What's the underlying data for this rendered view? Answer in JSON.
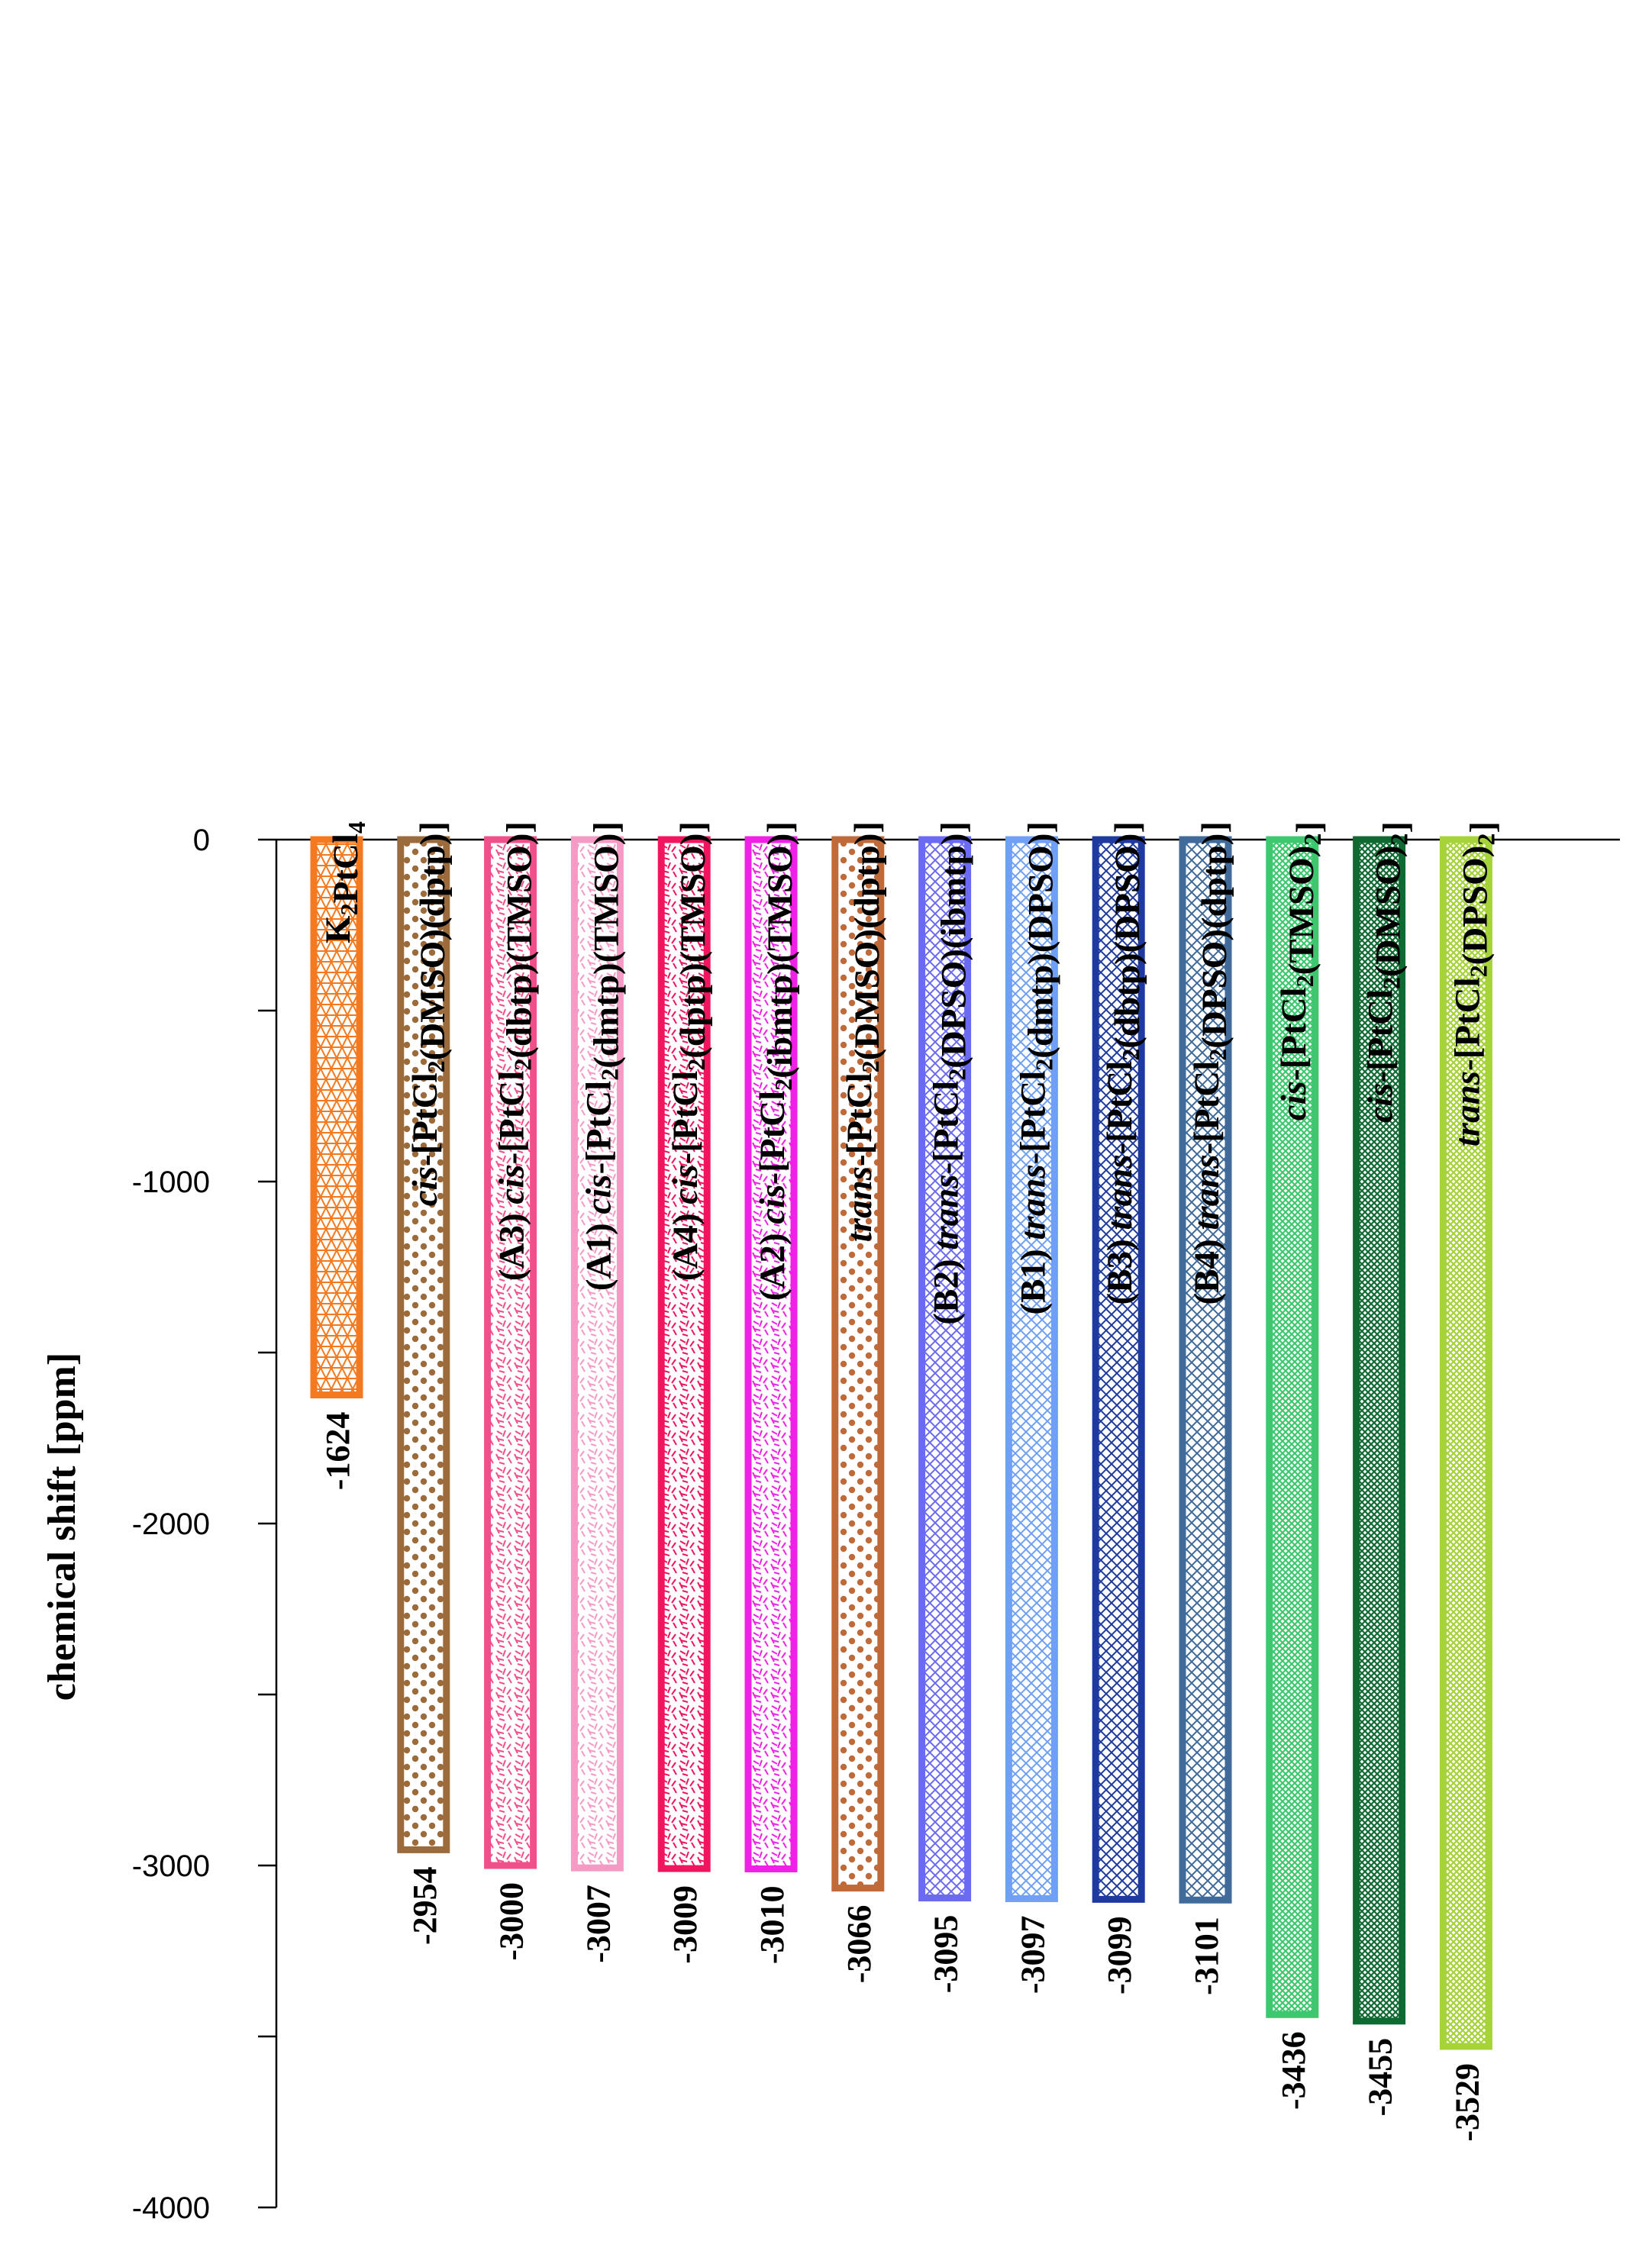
{
  "chart_data": {
    "type": "bar",
    "orientation": "vertical",
    "ylabel": "chemical shift [ppm]",
    "ylim": [
      -4000,
      0
    ],
    "yticks": [
      0,
      -1000,
      -2000,
      -3000,
      -4000
    ],
    "ytick_labels": [
      "0",
      "-1000",
      "-2000",
      "-3000",
      "-4000"
    ],
    "grid": false,
    "series": [
      {
        "name": "K2PtCl4",
        "label": [
          {
            "t": "K"
          },
          {
            "t": "2",
            "sub": true
          },
          {
            "t": "PtCl"
          },
          {
            "t": "4",
            "sub": true
          }
        ],
        "value": -1624,
        "value_label": "-1624",
        "color": "#F57A1F",
        "pattern": "triangles"
      },
      {
        "name": "cis-[PtCl2(DMSO)(dptp)]",
        "label": [
          {
            "t": "cis",
            "i": true
          },
          {
            "t": "-[PtCl"
          },
          {
            "t": "2",
            "sub": true
          },
          {
            "t": "(DMSO)(dptp)]"
          }
        ],
        "value": -2954,
        "value_label": "-2954",
        "color": "#9C6B3C",
        "pattern": "dots"
      },
      {
        "name": "(A3) cis-[PtCl2(dbtp)(TMSO)]",
        "label": [
          {
            "t": "(A3) "
          },
          {
            "t": "cis",
            "i": true
          },
          {
            "t": "-[PtCl"
          },
          {
            "t": "2",
            "sub": true
          },
          {
            "t": "(dbtp)(TMSO)]"
          }
        ],
        "value": -3000,
        "value_label": "-3000",
        "color": "#F0508A",
        "pattern": "swirl"
      },
      {
        "name": "(A1) cis-[PtCl2(dmtp)(TMSO)]",
        "label": [
          {
            "t": "(A1) "
          },
          {
            "t": "cis",
            "i": true
          },
          {
            "t": "-[PtCl"
          },
          {
            "t": "2",
            "sub": true
          },
          {
            "t": "(dmtp)(TMSO)]"
          }
        ],
        "value": -3007,
        "value_label": "-3007",
        "color": "#F59AC4",
        "pattern": "swirl"
      },
      {
        "name": "(A4) cis-[PtCl2(dptp)(TMSO)]",
        "label": [
          {
            "t": "(A4) "
          },
          {
            "t": "cis",
            "i": true
          },
          {
            "t": "-[PtCl"
          },
          {
            "t": "2",
            "sub": true
          },
          {
            "t": "(dptp)(TMSO)]"
          }
        ],
        "value": -3009,
        "value_label": "-3009",
        "color": "#F0155E",
        "pattern": "swirl"
      },
      {
        "name": "(A2) cis-[PtCl2(ibmtp)(TMSO)]",
        "label": [
          {
            "t": "(A2) "
          },
          {
            "t": "cis",
            "i": true
          },
          {
            "t": "-[PtCl"
          },
          {
            "t": "2",
            "sub": true
          },
          {
            "t": "(ibmtp)(TMSO)]"
          }
        ],
        "value": -3010,
        "value_label": "-3010",
        "color": "#F020E6",
        "pattern": "swirl"
      },
      {
        "name": "trans-[PtCl2(DMSO)(dptp)]",
        "label": [
          {
            "t": "trans",
            "i": true
          },
          {
            "t": "-[PtCl"
          },
          {
            "t": "2",
            "sub": true
          },
          {
            "t": "(DMSO)(dptp)]"
          }
        ],
        "value": -3066,
        "value_label": "-3066",
        "color": "#C06A3A",
        "pattern": "dots"
      },
      {
        "name": "(B2) trans-[PtCl2(DPSO)(ibmtp)]",
        "label": [
          {
            "t": "(B2) "
          },
          {
            "t": "trans",
            "i": true
          },
          {
            "t": "-[PtCl"
          },
          {
            "t": "2",
            "sub": true
          },
          {
            "t": "(DPSO)(ibmtp)]"
          }
        ],
        "value": -3095,
        "value_label": "-3095",
        "color": "#6A6AF2",
        "pattern": "crosshatch"
      },
      {
        "name": "(B1) trans-[PtCl2(dmtp)(DPSO)]",
        "label": [
          {
            "t": "(B1) "
          },
          {
            "t": "trans",
            "i": true
          },
          {
            "t": "-[PtCl"
          },
          {
            "t": "2",
            "sub": true
          },
          {
            "t": "(dmtp)(DPSO)]"
          }
        ],
        "value": -3097,
        "value_label": "-3097",
        "color": "#6FA0F5",
        "pattern": "crosshatch"
      },
      {
        "name": "(B3) trans-[PtCl2(dbtp)(DPSO)]",
        "label": [
          {
            "t": "(B3) "
          },
          {
            "t": "trans",
            "i": true
          },
          {
            "t": "-[PtCl"
          },
          {
            "t": "2",
            "sub": true
          },
          {
            "t": "(dbtp)(DPSO)]"
          }
        ],
        "value": -3099,
        "value_label": "-3099",
        "color": "#1E3A9E",
        "pattern": "crosshatch"
      },
      {
        "name": "(B4) trans-[PtCl2(DPSO)(dptp)]",
        "label": [
          {
            "t": "(B4) "
          },
          {
            "t": "trans",
            "i": true
          },
          {
            "t": "-[PtCl"
          },
          {
            "t": "2",
            "sub": true
          },
          {
            "t": "(DPSO)(dptp)]"
          }
        ],
        "value": -3101,
        "value_label": "-3101",
        "color": "#3F6A9A",
        "pattern": "crosshatch"
      },
      {
        "name": "cis-[PtCl2(TMSO)2]",
        "label": [
          {
            "t": "cis",
            "i": true
          },
          {
            "t": "-[PtCl"
          },
          {
            "t": "2",
            "sub": true
          },
          {
            "t": "(TMSO)"
          },
          {
            "t": "2",
            "sub": true
          },
          {
            "t": "]"
          }
        ],
        "value": -3436,
        "value_label": "-3436",
        "color": "#3CC86E",
        "pattern": "fine"
      },
      {
        "name": "cis-[PtCl2(DMSO)2]",
        "label": [
          {
            "t": "cis",
            "i": true
          },
          {
            "t": "-[PtCl"
          },
          {
            "t": "2",
            "sub": true
          },
          {
            "t": "(DMSO)"
          },
          {
            "t": "2",
            "sub": true
          },
          {
            "t": "]"
          }
        ],
        "value": -3455,
        "value_label": "-3455",
        "color": "#0F6A32",
        "pattern": "fine"
      },
      {
        "name": "trans-[PtCl2(DPSO)2]",
        "label": [
          {
            "t": "trans",
            "i": true
          },
          {
            "t": "-[PtCl"
          },
          {
            "t": "2",
            "sub": true
          },
          {
            "t": "(DPSO)"
          },
          {
            "t": "2",
            "sub": true
          },
          {
            "t": "]"
          }
        ],
        "value": -3529,
        "value_label": "-3529",
        "color": "#A6D23A",
        "pattern": "fine"
      }
    ]
  }
}
